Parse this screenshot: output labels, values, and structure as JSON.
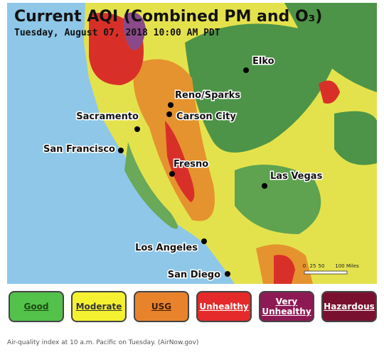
{
  "map": {
    "title": "Current AQI (Combined PM and O₃)",
    "subtitle": "Tuesday, August 07, 2018 10:00 AM PDT",
    "cities": [
      "Elko",
      "Reno/Sparks",
      "Carson City",
      "Sacramento",
      "San Francisco",
      "Fresno",
      "Las Vegas",
      "Los Angeles",
      "San Diego"
    ],
    "scale": [
      "0",
      "25",
      "50",
      "100 Miles"
    ]
  },
  "legend": [
    "Good",
    "Moderate",
    "USG",
    "Unhealthy",
    "Very Unhealthy",
    "Hazardous"
  ],
  "caption": "Air-quality index at 10 a.m. Pacific on Tuesday. (AirNow.gov)"
}
